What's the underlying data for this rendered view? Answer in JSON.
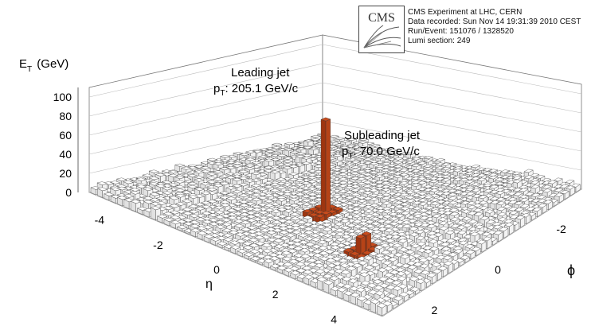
{
  "header": {
    "logo_text": "CMS",
    "info_lines": [
      "CMS Experiment at LHC, CERN",
      "Data recorded: Sun Nov 14 19:31:39 2010 CEST",
      "Run/Event: 151076 / 1328520",
      "Lumi section: 249"
    ]
  },
  "chart_data": {
    "type": "lego",
    "zlabel": "E",
    "zlabel_sub": "T",
    "zlabel_unit": "(GeV)",
    "xlabel": "η",
    "ylabel": "ϕ",
    "z_ticks": [
      "0",
      "20",
      "40",
      "60",
      "80",
      "100"
    ],
    "eta_ticks": [
      "-4",
      "-2",
      "0",
      "2",
      "4"
    ],
    "phi_ticks": [
      "2",
      "0",
      "-2"
    ],
    "eta_range": [
      -5,
      5
    ],
    "phi_range": [
      -3.14,
      3.14
    ],
    "zlim": [
      0,
      110
    ],
    "highlight_color": "#c84b1c",
    "annotations": [
      {
        "line1": "Leading jet",
        "pt_prefix": "p",
        "pt_sub": "T",
        "pt_value": ": 205.1 GeV/c"
      },
      {
        "line1": "Subleading jet",
        "pt_prefix": "p",
        "pt_sub": "T",
        "pt_value": ": 70.0 GeV/c"
      }
    ],
    "jets": [
      {
        "name": "Leading jet",
        "eta": -0.1,
        "phi": 0.5,
        "et": 100
      },
      {
        "name": "Subleading jet",
        "eta": 2.4,
        "phi": 1.4,
        "et": 20
      }
    ]
  }
}
